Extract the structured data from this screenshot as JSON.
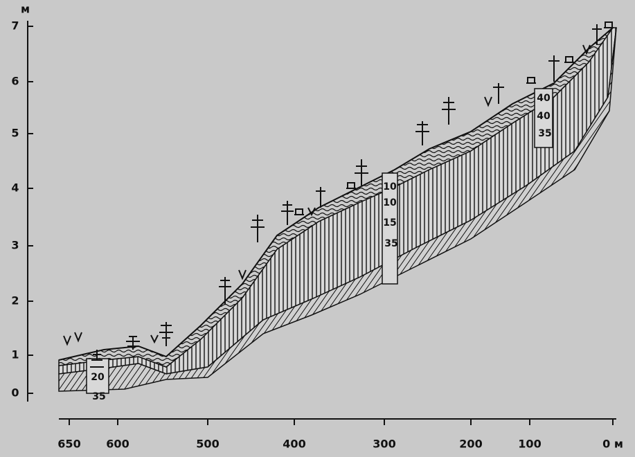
{
  "axis": {
    "y_unit": "м",
    "y_labels": [
      "0",
      "1",
      "2",
      "3",
      "4",
      "5",
      "6",
      "7"
    ],
    "x_labels": [
      "650",
      "600",
      "500",
      "400",
      "300",
      "200",
      "100",
      "0 м"
    ]
  },
  "profiles": [
    {
      "labels": [
        "20",
        "35"
      ]
    },
    {
      "labels": [
        "10",
        "10",
        "15",
        "35"
      ]
    },
    {
      "labels": [
        "40",
        "40",
        "35"
      ]
    }
  ]
}
